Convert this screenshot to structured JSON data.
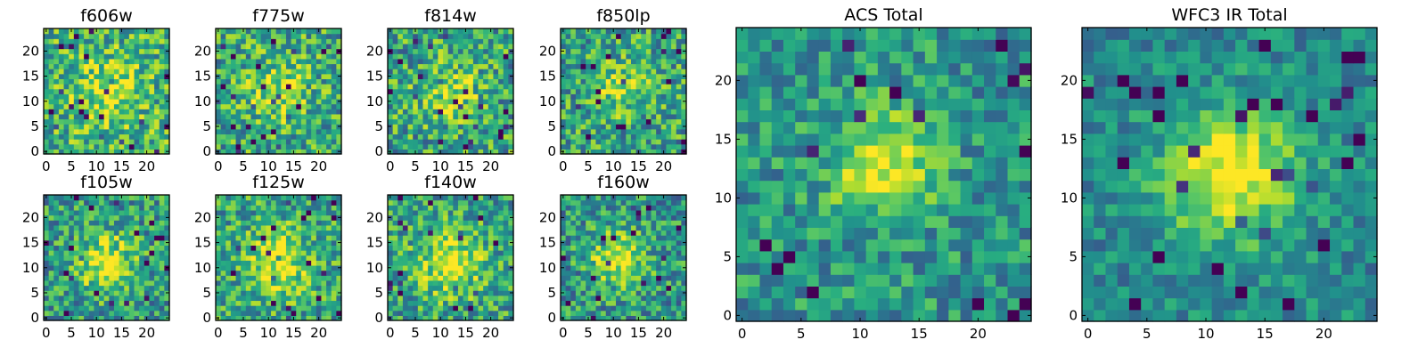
{
  "colormap": {
    "name": "viridis",
    "stops": [
      "#440154",
      "#472c7a",
      "#3b528b",
      "#2c728e",
      "#21918c",
      "#28ae80",
      "#5ec962",
      "#addc30",
      "#fde725"
    ]
  },
  "chart_data": [
    {
      "type": "heatmap",
      "title": "f606w",
      "grid_size": 25,
      "source": [
        12,
        12
      ],
      "spread": 4.5,
      "peak": 0.3,
      "noise": 0.6,
      "seed": 11,
      "bias": 0.12,
      "xticks": [
        0,
        5,
        10,
        15,
        20
      ],
      "yticks": [
        0,
        5,
        10,
        15,
        20
      ],
      "xlim": [
        0,
        24
      ],
      "ylim": [
        0,
        24
      ]
    },
    {
      "type": "heatmap",
      "title": "f775w",
      "grid_size": 25,
      "source": [
        12,
        12
      ],
      "spread": 4.0,
      "peak": 0.32,
      "noise": 0.6,
      "seed": 23,
      "bias": 0.08,
      "xticks": [
        0,
        5,
        10,
        15,
        20
      ],
      "yticks": [
        0,
        5,
        10,
        15,
        20
      ],
      "xlim": [
        0,
        24
      ],
      "ylim": [
        0,
        24
      ]
    },
    {
      "type": "heatmap",
      "title": "f814w",
      "grid_size": 25,
      "source": [
        12,
        12
      ],
      "spread": 4.0,
      "peak": 0.3,
      "noise": 0.62,
      "seed": 37,
      "bias": 0.06,
      "xticks": [
        0,
        5,
        10,
        15,
        20
      ],
      "yticks": [
        0,
        5,
        10,
        15,
        20
      ],
      "xlim": [
        0,
        24
      ],
      "ylim": [
        0,
        24
      ]
    },
    {
      "type": "heatmap",
      "title": "f850lp",
      "grid_size": 25,
      "source": [
        12,
        13
      ],
      "spread": 3.5,
      "peak": 0.3,
      "noise": 0.6,
      "seed": 41,
      "bias": 0.06,
      "xticks": [
        0,
        5,
        10,
        15,
        20
      ],
      "yticks": [
        0,
        5,
        10,
        15,
        20
      ],
      "xlim": [
        0,
        24
      ],
      "ylim": [
        0,
        24
      ]
    },
    {
      "type": "heatmap",
      "title": "f105w",
      "grid_size": 25,
      "source": [
        12,
        11
      ],
      "spread": 4.0,
      "peak": 0.45,
      "noise": 0.55,
      "seed": 53,
      "bias": 0.02,
      "xticks": [
        0,
        5,
        10,
        15,
        20
      ],
      "yticks": [
        0,
        5,
        10,
        15,
        20
      ],
      "xlim": [
        0,
        24
      ],
      "ylim": [
        0,
        24
      ]
    },
    {
      "type": "heatmap",
      "title": "f125w",
      "grid_size": 25,
      "source": [
        12,
        11
      ],
      "spread": 4.5,
      "peak": 0.4,
      "noise": 0.55,
      "seed": 67,
      "bias": 0.06,
      "xticks": [
        0,
        5,
        10,
        15,
        20
      ],
      "yticks": [
        0,
        5,
        10,
        15,
        20
      ],
      "xlim": [
        0,
        24
      ],
      "ylim": [
        0,
        24
      ]
    },
    {
      "type": "heatmap",
      "title": "f140w",
      "grid_size": 25,
      "source": [
        12,
        11
      ],
      "spread": 4.5,
      "peak": 0.4,
      "noise": 0.55,
      "seed": 79,
      "bias": 0.05,
      "xticks": [
        0,
        5,
        10,
        15,
        20
      ],
      "yticks": [
        0,
        5,
        10,
        15,
        20
      ],
      "xlim": [
        0,
        24
      ],
      "ylim": [
        0,
        24
      ]
    },
    {
      "type": "heatmap",
      "title": "f160w",
      "grid_size": 25,
      "source": [
        11,
        12
      ],
      "spread": 4.0,
      "peak": 0.45,
      "noise": 0.55,
      "seed": 97,
      "bias": 0.0,
      "xticks": [
        0,
        5,
        10,
        15,
        20
      ],
      "yticks": [
        0,
        5,
        10,
        15,
        20
      ],
      "xlim": [
        0,
        24
      ],
      "ylim": [
        0,
        24
      ]
    },
    {
      "type": "heatmap",
      "title": "ACS Total",
      "grid_size": 25,
      "source": [
        12,
        13
      ],
      "spread": 3.0,
      "peak": 0.5,
      "noise": 0.45,
      "seed": 131,
      "bias": 0.0,
      "xticks": [
        0,
        5,
        10,
        15,
        20
      ],
      "yticks": [
        0,
        5,
        10,
        15,
        20
      ],
      "xlim": [
        0,
        24
      ],
      "ylim": [
        0,
        24
      ]
    },
    {
      "type": "heatmap",
      "title": "WFC3 IR Total",
      "grid_size": 25,
      "source": [
        12,
        12
      ],
      "spread": 4.0,
      "peak": 0.55,
      "noise": 0.35,
      "seed": 149,
      "bias": -0.05,
      "xticks": [
        0,
        5,
        10,
        15,
        20
      ],
      "yticks": [
        0,
        5,
        10,
        15,
        20
      ],
      "xlim": [
        0,
        24
      ],
      "ylim": [
        0,
        24
      ]
    }
  ]
}
